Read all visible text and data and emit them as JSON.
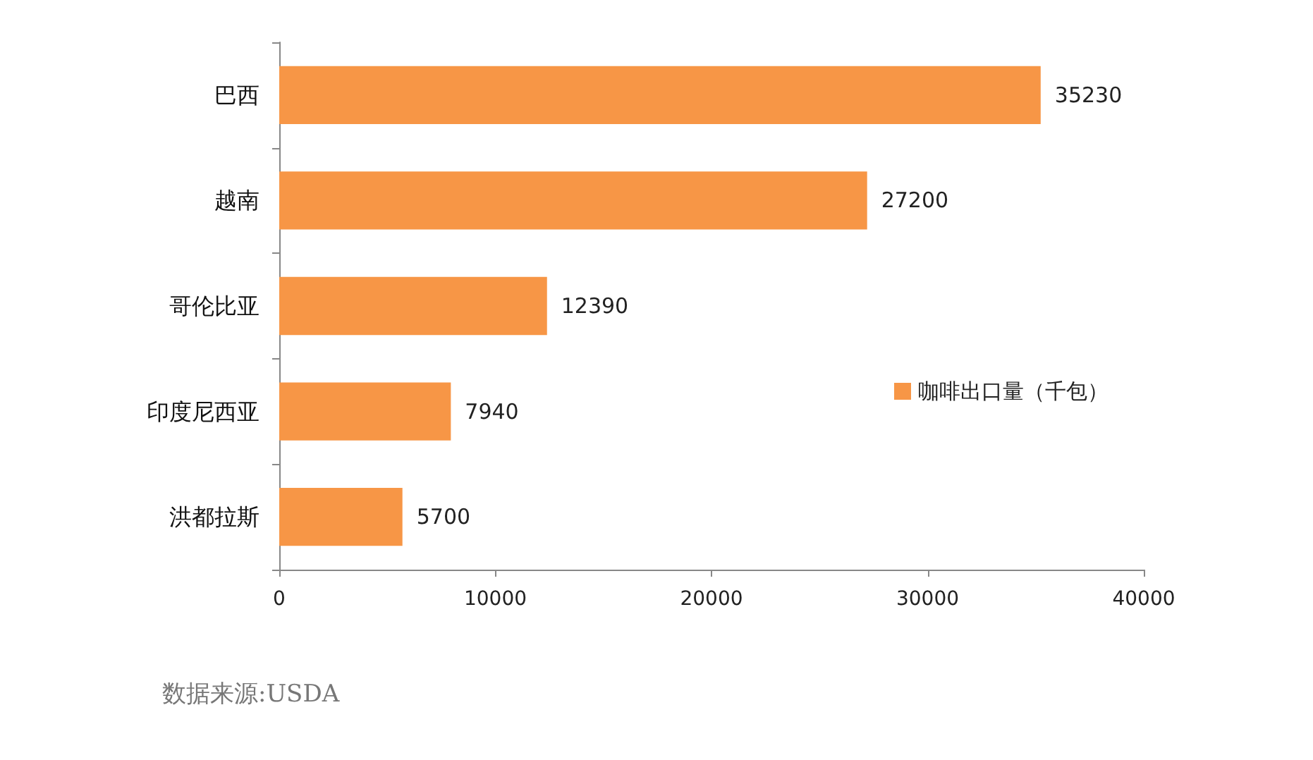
{
  "chart_data": {
    "type": "bar",
    "orientation": "horizontal",
    "categories": [
      "巴西",
      "越南",
      "哥伦比亚",
      "印度尼西亚",
      "洪都拉斯"
    ],
    "series": [
      {
        "name": "咖啡出口量（千包）",
        "color": "#f79646",
        "values": [
          35230,
          27200,
          12390,
          7940,
          5700
        ]
      }
    ],
    "xlim": [
      0,
      40000
    ],
    "xticks": [
      0,
      10000,
      20000,
      30000,
      40000
    ],
    "grid": false,
    "legend": "right",
    "data_labels": true,
    "annotations": [
      "数据来源:USDA"
    ]
  }
}
